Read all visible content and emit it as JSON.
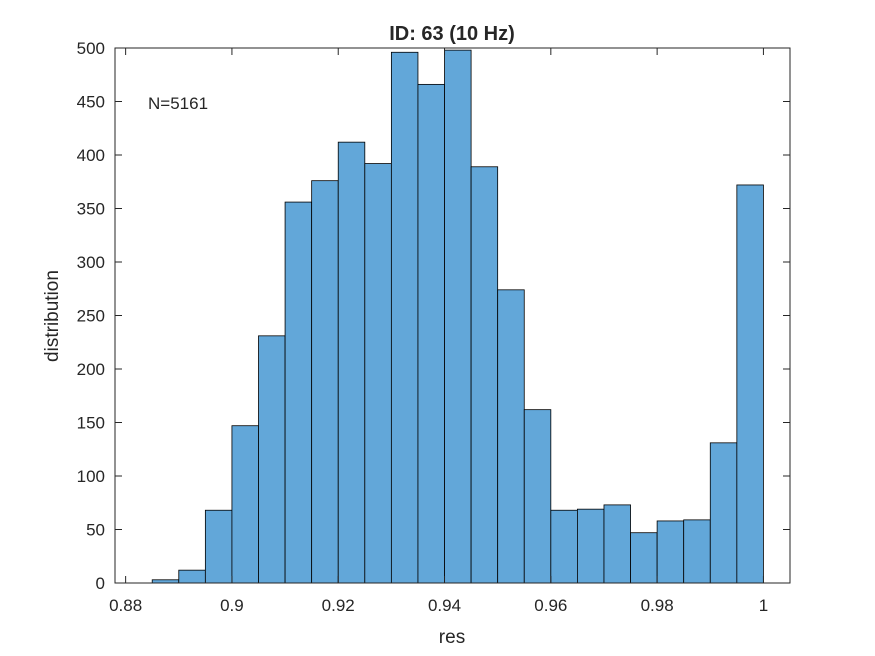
{
  "chart_data": {
    "type": "bar",
    "title": "ID: 63 (10 Hz)",
    "xlabel": "res",
    "ylabel": "distribution",
    "annotation": "N=5161",
    "xlim": [
      0.878,
      1.005
    ],
    "ylim": [
      0,
      500
    ],
    "x_ticks": [
      0.88,
      0.9,
      0.92,
      0.94,
      0.96,
      0.98,
      1
    ],
    "x_tick_labels": [
      "0.88",
      "0.9",
      "0.92",
      "0.94",
      "0.96",
      "0.98",
      "1"
    ],
    "y_ticks": [
      0,
      50,
      100,
      150,
      200,
      250,
      300,
      350,
      400,
      450,
      500
    ],
    "y_tick_labels": [
      "0",
      "50",
      "100",
      "150",
      "200",
      "250",
      "300",
      "350",
      "400",
      "450",
      "500"
    ],
    "bin_edges": [
      0.885,
      0.89,
      0.895,
      0.9,
      0.905,
      0.91,
      0.915,
      0.92,
      0.925,
      0.93,
      0.935,
      0.94,
      0.945,
      0.95,
      0.955,
      0.96,
      0.965,
      0.97,
      0.975,
      0.98,
      0.985,
      0.99,
      0.995,
      1.0
    ],
    "values": [
      3,
      12,
      68,
      147,
      231,
      356,
      376,
      412,
      392,
      496,
      466,
      498,
      389,
      274,
      162,
      68,
      69,
      73,
      47,
      58,
      59,
      131,
      372
    ],
    "bar_color": "#62A7D9",
    "edge_color": "#000000",
    "grid": false,
    "box": true
  }
}
